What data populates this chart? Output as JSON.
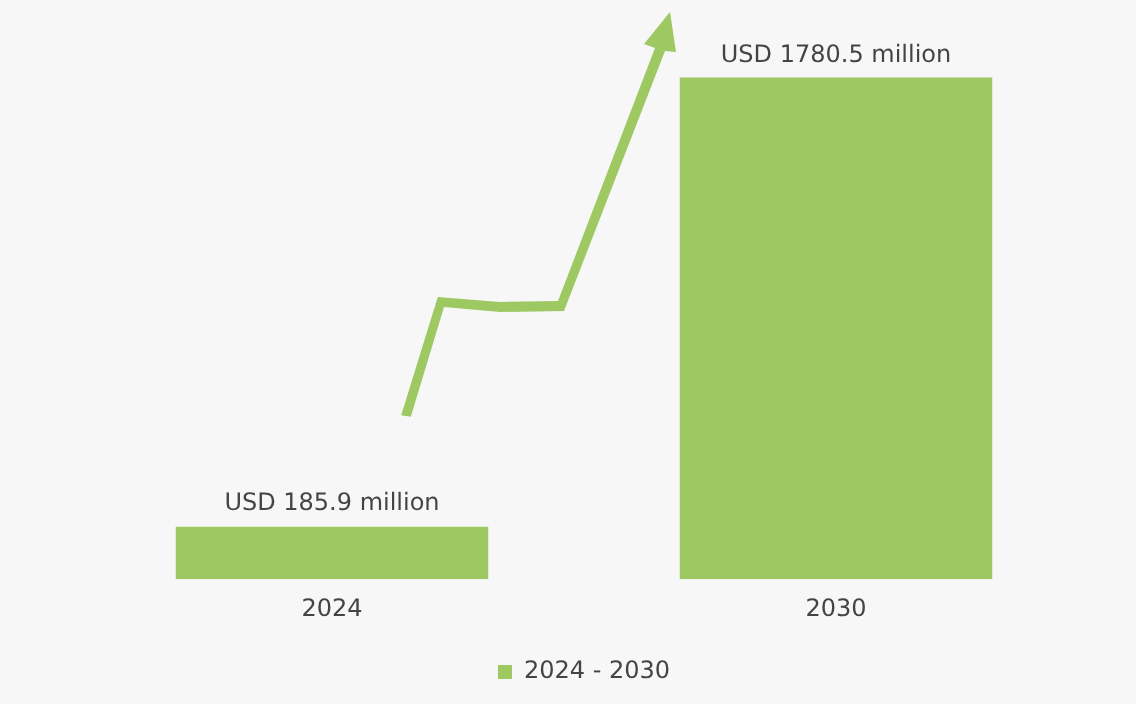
{
  "chart_data": {
    "type": "bar",
    "categories": [
      "2024",
      "2030"
    ],
    "series": [
      {
        "name": "2024 - 2030",
        "color": "#9dc862",
        "values": [
          185900000,
          1780500000
        ],
        "value_labels": [
          "USD 185.9 million",
          "USD 1780.5 million"
        ]
      }
    ],
    "legend": "bottom",
    "grid": false
  }
}
